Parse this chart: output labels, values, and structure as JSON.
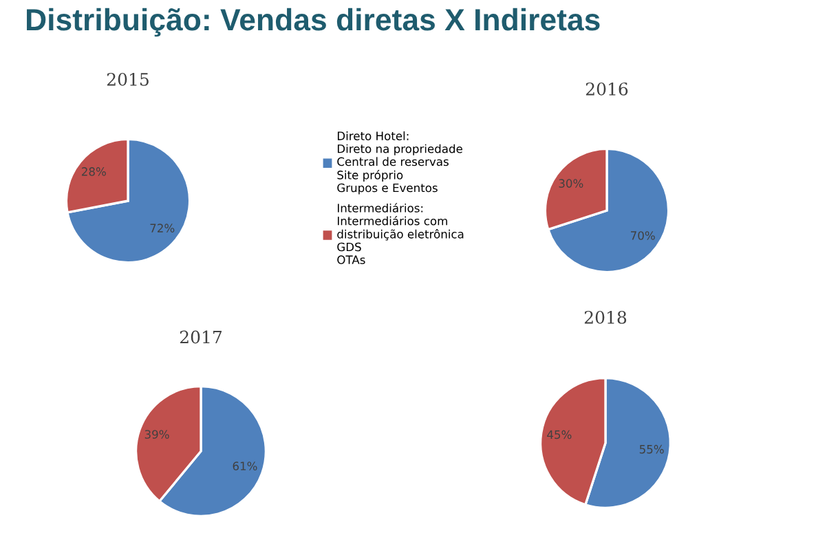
{
  "chart_data": [
    {
      "type": "pie",
      "title": "2015",
      "annotations": [
        "Distribuição: Vendas diretas X Indiretas"
      ],
      "legend": "right",
      "categories": [
        "Direto Hotel:\nDireto na propriedade\nCentral de reservas\nSite próprio\nGrupos e Eventos",
        "Intermediários:\nIntermediários com\ndistribuição eletrônica\nGDS\nOTAs"
      ],
      "values": [
        72,
        28
      ],
      "value_labels": [
        "72%",
        "28%"
      ],
      "colors": [
        "#4f81bd",
        "#c0504d"
      ]
    },
    {
      "type": "pie",
      "title": "2016",
      "categories": [
        null,
        null
      ],
      "values": [
        70,
        30
      ],
      "value_labels": [
        "70%",
        "30%"
      ],
      "colors": [
        "#4f81bd",
        "#c0504d"
      ]
    },
    {
      "type": "pie",
      "title": "2017",
      "categories": [
        null,
        null
      ],
      "values": [
        61,
        39
      ],
      "value_labels": [
        "61%",
        "39%"
      ],
      "colors": [
        "#4f81bd",
        "#c0504d"
      ]
    },
    {
      "type": "pie",
      "title": "2018",
      "categories": [
        null,
        null
      ],
      "values": [
        55,
        45
      ],
      "value_labels": [
        "55%",
        "45%"
      ],
      "colors": [
        "#4f81bd",
        "#c0504d"
      ]
    }
  ]
}
